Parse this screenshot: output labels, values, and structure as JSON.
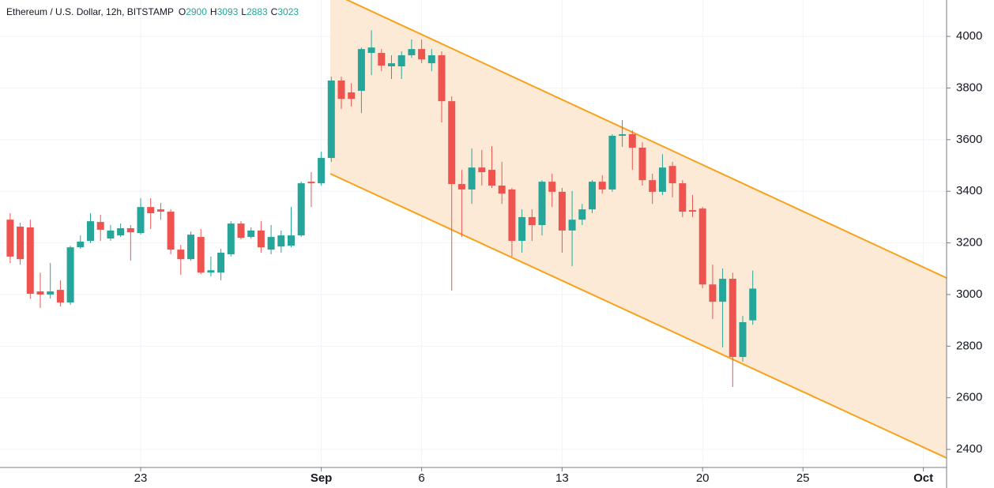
{
  "chart_data": {
    "type": "candlestick",
    "title": "Ethereum / U.S. Dollar, 12h, BITSTAMP",
    "header_ohlc": [
      {
        "label": "O",
        "value": "2900"
      },
      {
        "label": "H",
        "value": "3093"
      },
      {
        "label": "L",
        "value": "2883"
      },
      {
        "label": "C",
        "value": "3023"
      }
    ],
    "categories": [
      null,
      null,
      null,
      null,
      null,
      null,
      null,
      null,
      null,
      null,
      null,
      null,
      null,
      "23",
      null,
      null,
      null,
      null,
      null,
      null,
      null,
      null,
      null,
      null,
      null,
      null,
      null,
      null,
      null,
      null,
      null,
      "Sep",
      null,
      null,
      null,
      null,
      null,
      null,
      null,
      null,
      null,
      "6",
      null,
      null,
      null,
      null,
      null,
      null,
      null,
      null,
      null,
      null,
      null,
      null,
      null,
      "13",
      null,
      null,
      null,
      null,
      null,
      null,
      null,
      null,
      null,
      null,
      null,
      null,
      null,
      "20",
      null,
      null,
      null,
      null,
      null,
      null,
      null,
      null,
      null,
      "25",
      null,
      null,
      null,
      null,
      null,
      null,
      null,
      null,
      null,
      null,
      null,
      "Oct",
      null,
      null
    ],
    "open": [
      3290,
      3263,
      3260,
      3012,
      3000,
      3018,
      2969,
      3183,
      3208,
      3281,
      3217,
      3229,
      3257,
      3238,
      3339,
      3330,
      3321,
      3174,
      3137,
      3223,
      3085,
      3085,
      3156,
      3275,
      3223,
      3248,
      3174,
      3186,
      3189,
      3229,
      3437,
      3431,
      3529,
      3829,
      3783,
      3789,
      3936,
      3936,
      3884,
      3884,
      3927,
      3951,
      3896,
      3927,
      3749,
      3428,
      3407,
      3492,
      3483,
      3422,
      3407,
      3208,
      3300,
      3269,
      3437,
      3398,
      3248,
      3290,
      3330,
      3437,
      3407,
      3615,
      3621,
      3569,
      3443,
      3398,
      3498,
      3431,
      3327,
      3333,
      3039,
      2972,
      3061,
      2758,
      2900,
      null,
      null,
      null,
      null,
      null,
      null,
      null,
      null,
      null,
      null,
      null,
      null,
      null,
      null,
      null,
      null,
      null,
      null,
      null
    ],
    "high": [
      3315,
      3278,
      3290,
      3085,
      3122,
      3055,
      3189,
      3229,
      3315,
      3309,
      3269,
      3275,
      3269,
      3373,
      3373,
      3355,
      3330,
      3192,
      3244,
      3254,
      3147,
      3177,
      3284,
      3284,
      3260,
      3284,
      3269,
      3248,
      3339,
      3437,
      3474,
      3553,
      3844,
      3844,
      3819,
      3957,
      4024,
      3951,
      3927,
      3942,
      3988,
      3988,
      3951,
      3942,
      3768,
      3483,
      3566,
      3560,
      3575,
      3514,
      3413,
      3330,
      3330,
      3443,
      3468,
      3413,
      3401,
      3351,
      3443,
      3462,
      3621,
      3676,
      3636,
      3590,
      3468,
      3544,
      3514,
      3443,
      3385,
      3339,
      3116,
      3101,
      3085,
      2917,
      3093,
      null,
      null,
      null,
      null,
      null,
      null,
      null,
      null,
      null,
      null,
      null,
      null,
      null,
      null,
      null,
      null,
      null,
      null,
      null
    ],
    "low": [
      3122,
      3116,
      2984,
      2948,
      2984,
      2954,
      2960,
      3177,
      3199,
      3208,
      3208,
      3223,
      3131,
      3232,
      3254,
      3290,
      3156,
      3076,
      3131,
      3079,
      3070,
      3055,
      3147,
      3214,
      3217,
      3162,
      3156,
      3162,
      3183,
      3223,
      3339,
      3422,
      3514,
      3719,
      3728,
      3703,
      3850,
      3865,
      3835,
      3835,
      3917,
      3896,
      3865,
      3667,
      3015,
      3223,
      3351,
      3422,
      3413,
      3351,
      3147,
      3162,
      3208,
      3229,
      3339,
      3162,
      3110,
      3269,
      3315,
      3391,
      3398,
      3572,
      3483,
      3422,
      3351,
      3385,
      3376,
      3300,
      3300,
      3024,
      2905,
      2795,
      2642,
      2740,
      2883,
      null,
      null,
      null,
      null,
      null,
      null,
      null,
      null,
      null,
      null,
      null,
      null,
      null,
      null,
      null,
      null,
      null,
      null,
      null
    ],
    "close": [
      3147,
      3137,
      3003,
      3000,
      3012,
      2969,
      3183,
      3205,
      3284,
      3251,
      3248,
      3257,
      3241,
      3339,
      3315,
      3321,
      3174,
      3137,
      3232,
      3085,
      3094,
      3162,
      3275,
      3220,
      3248,
      3183,
      3223,
      3229,
      3229,
      3431,
      3431,
      3529,
      3829,
      3758,
      3758,
      3951,
      3957,
      3887,
      3896,
      3927,
      3951,
      3911,
      3927,
      3749,
      3428,
      3407,
      3492,
      3474,
      3422,
      3391,
      3208,
      3300,
      3269,
      3437,
      3398,
      3248,
      3290,
      3330,
      3437,
      3407,
      3615,
      3621,
      3569,
      3443,
      3398,
      3492,
      3431,
      3321,
      3321,
      3039,
      2972,
      3061,
      2758,
      2893,
      3023,
      null,
      null,
      null,
      null,
      null,
      null,
      null,
      null,
      null,
      null,
      null,
      null,
      null,
      null,
      null,
      null,
      null,
      null,
      null
    ],
    "up_color": "#26a69a",
    "down_color": "#ef5350",
    "ylim": [
      2330,
      4141
    ],
    "yticks": [
      2400,
      2600,
      2800,
      3000,
      3200,
      3400,
      3600,
      3800,
      4000
    ],
    "grid": true
  }
}
